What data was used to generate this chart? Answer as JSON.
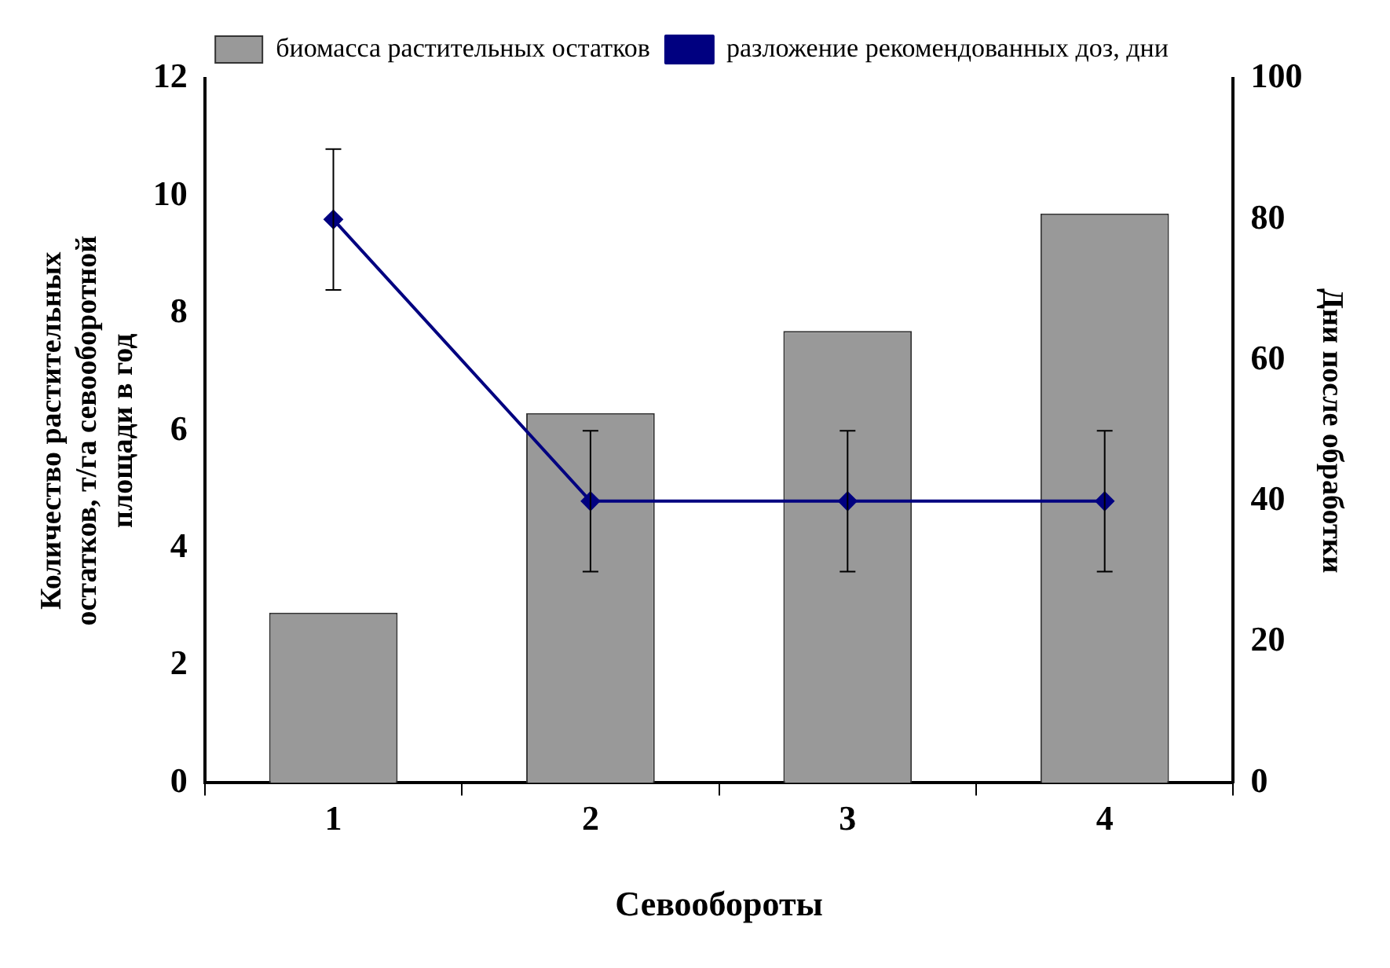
{
  "chart_data": {
    "type": "bar",
    "xlabel": "Севообороты",
    "ylabel": "Количество растительных остатков, т/га севооборотной площади в год",
    "y2label": "Дни после обработки",
    "categories": [
      "1",
      "2",
      "3",
      "4"
    ],
    "series": [
      {
        "name": "биомасса растительных остатков",
        "color": "#999999",
        "values": [
          2.9,
          6.3,
          7.7,
          9.7
        ]
      },
      {
        "name": "разложение рекомендованных доз, дни",
        "type": "line",
        "axis": "y2",
        "color": "#000080",
        "values": [
          80,
          40,
          40,
          40
        ],
        "errors": [
          10,
          10,
          10,
          10
        ],
        "marker": "diamond"
      }
    ],
    "ylim": [
      0,
      12
    ],
    "yticks": [
      0,
      2,
      4,
      6,
      8,
      10,
      12
    ],
    "y2lim": [
      0,
      100
    ],
    "y2ticks": [
      0,
      20,
      40,
      60,
      80,
      100
    ],
    "grid": false,
    "legend": "top"
  }
}
